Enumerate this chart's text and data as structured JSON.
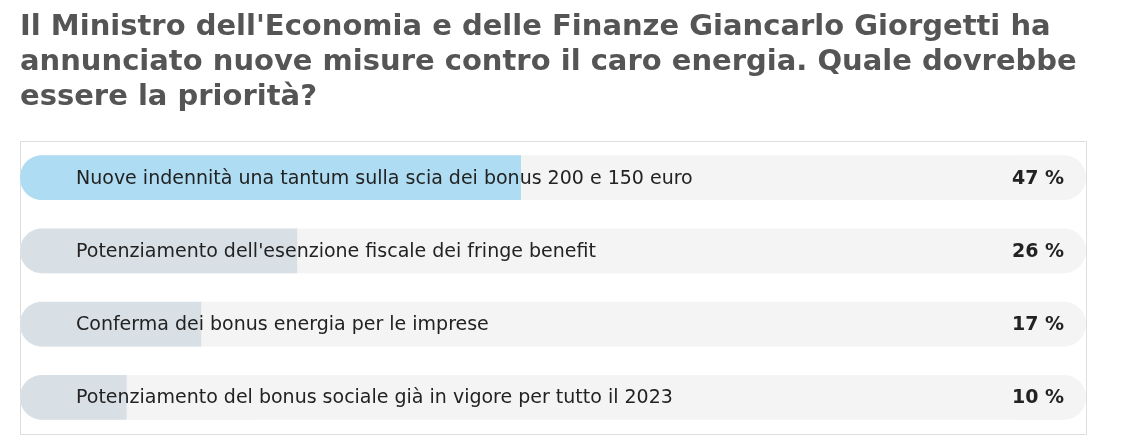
{
  "chart_data": {
    "type": "bar",
    "orientation": "horizontal",
    "title": "Il Ministro dell'Economia e delle Finanze Giancarlo Giorgetti ha annunciato nuove misure contro il caro energia. Quale dovrebbe essere la priorità?",
    "categories": [
      "Nuove indennità una tantum sulla scia dei bonus 200 e 150 euro",
      "Potenziamento dell'esenzione fiscale dei fringe benefit",
      "Conferma dei bonus energia per le imprese",
      "Potenziamento del bonus sociale già in vigore per tutto il 2023"
    ],
    "values": [
      47,
      26,
      17,
      10
    ],
    "colors": [
      "#aedcf3",
      "#d8e0e6",
      "#d8e0e6",
      "#d8e0e6"
    ],
    "value_labels": [
      "47 %",
      "26 %",
      "17 %",
      "10 %"
    ],
    "xlim": [
      0,
      100
    ],
    "tick_labels": "y"
  }
}
